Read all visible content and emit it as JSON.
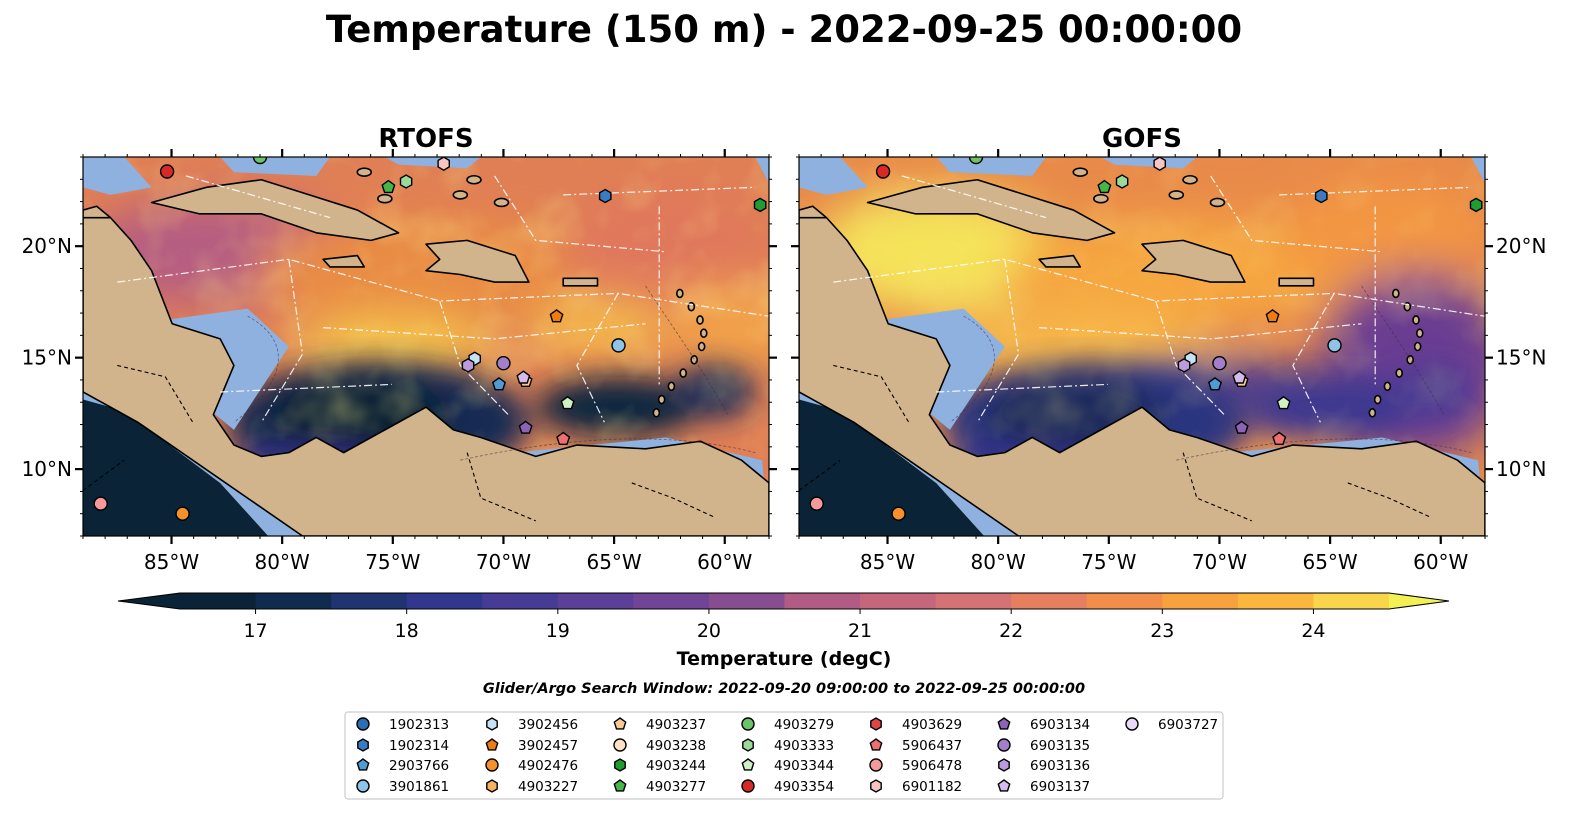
{
  "figure": {
    "title": "Temperature (150 m) - 2022-09-25 00:00:00",
    "search_window": "Glider/Argo Search Window: 2022-09-20 09:00:00 to 2022-09-25 00:00:00"
  },
  "panels": [
    {
      "title": "RTOFS",
      "variant": "rtofs"
    },
    {
      "title": "GOFS",
      "variant": "gofs"
    }
  ],
  "map": {
    "lon_range": [
      -89,
      -58
    ],
    "lat_range": [
      7,
      24
    ],
    "x_ticks": [
      -85,
      -80,
      -75,
      -70,
      -65,
      -60
    ],
    "x_tick_labels": [
      "85°W",
      "80°W",
      "75°W",
      "70°W",
      "65°W",
      "60°W"
    ],
    "y_ticks": [
      10,
      15,
      20
    ],
    "y_tick_labels": [
      "10°N",
      "15°N",
      "20°N"
    ],
    "land_color": "#d2b48c",
    "shelf_color": "#8fb1df"
  },
  "colorbar": {
    "label": "Temperature (degC)",
    "min": 16.5,
    "max": 24.5,
    "step": 0.5,
    "ticks": [
      17,
      18,
      19,
      20,
      21,
      22,
      23,
      24
    ],
    "colors": [
      "#0a2336",
      "#0f2b4f",
      "#1f3470",
      "#30378c",
      "#463b95",
      "#5c3f96",
      "#714595",
      "#874d91",
      "#9c538b",
      "#b15c84",
      "#c4677d",
      "#d57275",
      "#e57f5f",
      "#f18f4a",
      "#f7a13f",
      "#fbb73d",
      "#f8d54b"
    ],
    "extend": "both"
  },
  "legend": [
    {
      "id": "1902313",
      "marker": "circle",
      "color": "#2b6eb5"
    },
    {
      "id": "1902314",
      "marker": "hexagon",
      "color": "#3a7cc4"
    },
    {
      "id": "2903766",
      "marker": "pentagon",
      "color": "#4f9bd4"
    },
    {
      "id": "3901861",
      "marker": "circle",
      "color": "#8ec3ea"
    },
    {
      "id": "3902456",
      "marker": "hexagon",
      "color": "#c6e2f5"
    },
    {
      "id": "3902457",
      "marker": "pentagon",
      "color": "#f07b10"
    },
    {
      "id": "4902476",
      "marker": "circle",
      "color": "#f5902a"
    },
    {
      "id": "4903227",
      "marker": "hexagon",
      "color": "#f8b063"
    },
    {
      "id": "4903237",
      "marker": "pentagon",
      "color": "#fbc994"
    },
    {
      "id": "4903238",
      "marker": "circle",
      "color": "#fde2c3"
    },
    {
      "id": "4903244",
      "marker": "hexagon",
      "color": "#1e9e2f"
    },
    {
      "id": "4903277",
      "marker": "pentagon",
      "color": "#46b649"
    },
    {
      "id": "4903279",
      "marker": "circle",
      "color": "#6cc46a"
    },
    {
      "id": "4903333",
      "marker": "hexagon",
      "color": "#9ad997"
    },
    {
      "id": "4903344",
      "marker": "pentagon",
      "color": "#cdf0c5"
    },
    {
      "id": "4903354",
      "marker": "circle",
      "color": "#d62a26"
    },
    {
      "id": "4903629",
      "marker": "hexagon",
      "color": "#e04545"
    },
    {
      "id": "5906437",
      "marker": "pentagon",
      "color": "#ee6f6f"
    },
    {
      "id": "5906478",
      "marker": "circle",
      "color": "#f59a9a"
    },
    {
      "id": "6901182",
      "marker": "hexagon",
      "color": "#f7c4c4"
    },
    {
      "id": "6903134",
      "marker": "pentagon",
      "color": "#8b63b8"
    },
    {
      "id": "6903135",
      "marker": "circle",
      "color": "#a37fcb"
    },
    {
      "id": "6903136",
      "marker": "hexagon",
      "color": "#bb9bdc"
    },
    {
      "id": "6903137",
      "marker": "pentagon",
      "color": "#d4bdee"
    },
    {
      "id": "6903727",
      "marker": "circle",
      "color": "#ead9f7"
    }
  ],
  "platforms": [
    {
      "id": "4903354",
      "lon": -85.2,
      "lat": 23.35
    },
    {
      "id": "4903279",
      "lon": -81.0,
      "lat": 24.0
    },
    {
      "id": "6901182",
      "lon": -72.7,
      "lat": 23.7
    },
    {
      "id": "4903277",
      "lon": -75.2,
      "lat": 22.65
    },
    {
      "id": "4903333",
      "lon": -74.4,
      "lat": 22.9
    },
    {
      "id": "1902314",
      "lon": -65.4,
      "lat": 22.25
    },
    {
      "id": "4903244",
      "lon": -58.4,
      "lat": 21.85
    },
    {
      "id": "3902457",
      "lon": -67.6,
      "lat": 16.85
    },
    {
      "id": "3901861",
      "lon": -64.8,
      "lat": 15.55
    },
    {
      "id": "3902456",
      "lon": -71.3,
      "lat": 14.95
    },
    {
      "id": "6903136",
      "lon": -71.6,
      "lat": 14.65
    },
    {
      "id": "6903135",
      "lon": -70.0,
      "lat": 14.75
    },
    {
      "id": "2903766",
      "lon": -70.2,
      "lat": 13.8
    },
    {
      "id": "4903237",
      "lon": -69.0,
      "lat": 13.95
    },
    {
      "id": "6903137",
      "lon": -69.1,
      "lat": 14.1
    },
    {
      "id": "4903344",
      "lon": -67.1,
      "lat": 12.95
    },
    {
      "id": "6903134",
      "lon": -69.0,
      "lat": 11.85
    },
    {
      "id": "5906437",
      "lon": -67.3,
      "lat": 11.35
    },
    {
      "id": "5906478",
      "lon": -88.2,
      "lat": 8.45
    },
    {
      "id": "4902476",
      "lon": -84.5,
      "lat": 8.0
    }
  ]
}
